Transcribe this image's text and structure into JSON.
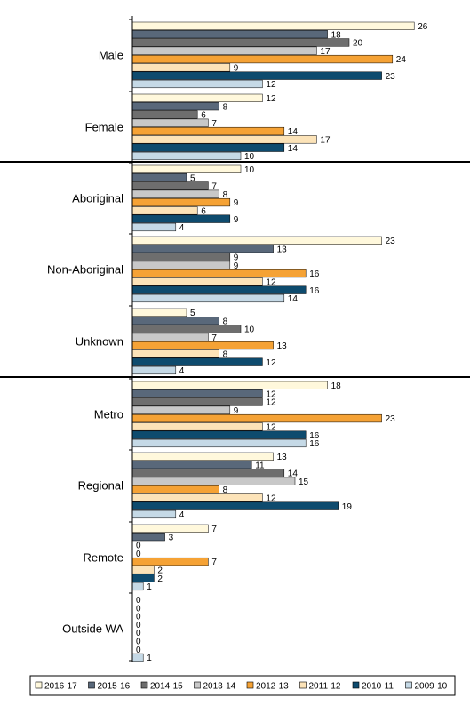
{
  "chart_data": {
    "type": "bar",
    "orientation": "horizontal",
    "xlim": [
      0,
      30
    ],
    "grid": false,
    "legend_position": "bottom",
    "categories": [
      "Male",
      "Female",
      "Aboriginal",
      "Non-Aboriginal",
      "Unknown",
      "Metro",
      "Regional",
      "Remote",
      "Outside WA"
    ],
    "groups": [
      [
        0,
        1
      ],
      [
        2,
        3,
        4
      ],
      [
        5,
        6,
        7,
        8
      ]
    ],
    "series": [
      {
        "name": "2016-17",
        "color": "#FFF8DC",
        "values": [
          26,
          12,
          10,
          23,
          5,
          18,
          13,
          7,
          0
        ]
      },
      {
        "name": "2015-16",
        "color": "#59687A",
        "values": [
          18,
          8,
          5,
          13,
          8,
          12,
          11,
          3,
          0
        ]
      },
      {
        "name": "2014-15",
        "color": "#6E6E6E",
        "values": [
          20,
          6,
          7,
          9,
          10,
          12,
          14,
          0,
          0
        ]
      },
      {
        "name": "2013-14",
        "color": "#C8C8C8",
        "values": [
          17,
          7,
          8,
          9,
          7,
          9,
          15,
          0,
          0
        ]
      },
      {
        "name": "2012-13",
        "color": "#F5A235",
        "values": [
          24,
          14,
          9,
          16,
          13,
          23,
          8,
          7,
          0
        ]
      },
      {
        "name": "2011-12",
        "color": "#FCE3B8",
        "values": [
          9,
          17,
          6,
          12,
          8,
          12,
          12,
          2,
          0
        ]
      },
      {
        "name": "2010-11",
        "color": "#0E4B6E",
        "values": [
          23,
          14,
          9,
          16,
          12,
          16,
          19,
          2,
          0
        ]
      },
      {
        "name": "2009-10",
        "color": "#C5D9E6",
        "values": [
          12,
          10,
          4,
          14,
          4,
          16,
          4,
          1,
          1
        ]
      }
    ]
  }
}
